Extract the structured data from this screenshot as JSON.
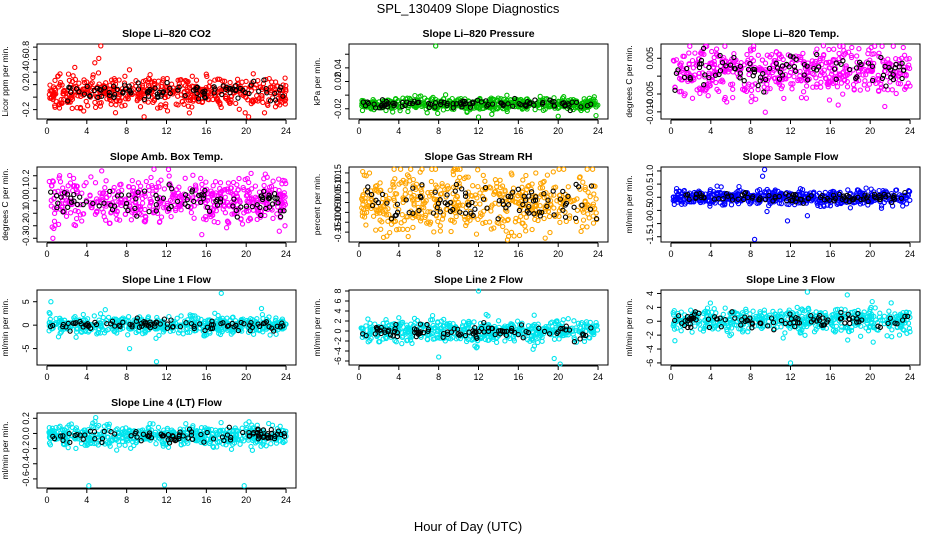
{
  "figure": {
    "title": "SPL_130409  Slope Diagnostics",
    "xlabel": "Hour of Day (UTC)"
  },
  "chart_data": [
    {
      "type": "scatter",
      "title": "Slope Li–820 CO2",
      "ylabel": "Licor ppm per min.",
      "color": "#ff0000",
      "xlim": [
        -1,
        25
      ],
      "ylim": [
        -0.35,
        0.85
      ],
      "xticks": [
        0,
        4,
        8,
        12,
        16,
        20,
        24
      ],
      "yticks": [
        -0.2,
        0.0,
        0.2,
        0.4,
        0.6,
        0.8
      ],
      "ytick_labels": [
        "-0.2",
        "",
        "0.2",
        "0.4",
        "0.6",
        "0.8"
      ],
      "spread": 0.12,
      "center": 0.08,
      "outliers": [
        [
          5.4,
          0.82
        ],
        [
          5.2,
          0.62
        ],
        [
          4.8,
          0.55
        ],
        [
          19.9,
          -0.25
        ],
        [
          12.1,
          -0.22
        ]
      ]
    },
    {
      "type": "scatter",
      "title": "Slope Li–820 Pressure",
      "ylabel": "kPa per min.",
      "color": "#00c000",
      "xlim": [
        -1,
        25
      ],
      "ylim": [
        -0.035,
        0.075
      ],
      "xticks": [
        0,
        4,
        8,
        12,
        16,
        20,
        24
      ],
      "yticks": [
        -0.02,
        0.0,
        0.02,
        0.04,
        0.06
      ],
      "ytick_labels": [
        "-0.02",
        "",
        "0.02",
        "0.04",
        ""
      ],
      "spread": 0.005,
      "center": -0.013,
      "outliers": [
        [
          7.7,
          0.072
        ],
        [
          12.0,
          -0.032
        ],
        [
          20.0,
          -0.031
        ],
        [
          23.8,
          -0.03
        ]
      ]
    },
    {
      "type": "scatter",
      "title": "Slope Li–820 Temp.",
      "ylabel": "degrees C per min.",
      "color": "#ff00ff",
      "xlim": [
        -1,
        25
      ],
      "ylim": [
        -0.012,
        0.009
      ],
      "xticks": [
        0,
        4,
        8,
        12,
        16,
        20,
        24
      ],
      "yticks": [
        -0.01,
        -0.005,
        0.0,
        0.005
      ],
      "ytick_labels": [
        "-0.010",
        "-0.005",
        "",
        "0.005"
      ],
      "spread": 0.0035,
      "center": 0.0015,
      "outliers": [
        [
          15.3,
          0.0085
        ],
        [
          20.1,
          0.008
        ],
        [
          6.2,
          -0.006
        ],
        [
          13.1,
          -0.006
        ]
      ]
    },
    {
      "type": "scatter",
      "title": "Slope Amb. Box Temp.",
      "ylabel": "degrees C per min.",
      "color": "#ff00ff",
      "xlim": [
        -1,
        25
      ],
      "ylim": [
        -0.33,
        0.27
      ],
      "xticks": [
        0,
        4,
        8,
        12,
        16,
        20,
        24
      ],
      "yticks": [
        -0.3,
        -0.2,
        -0.1,
        0.0,
        0.1,
        0.2
      ],
      "ytick_labels": [
        "-0.3",
        "-0.2",
        "-0.1",
        "0.0",
        "0.1",
        "0.2"
      ],
      "spread": 0.09,
      "center": 0.0,
      "outliers": [
        [
          0.6,
          -0.3
        ],
        [
          12.2,
          0.25
        ],
        [
          23.9,
          -0.2
        ]
      ]
    },
    {
      "type": "scatter",
      "title": "Slope Gas Stream RH",
      "ylabel": "percent per min.",
      "color": "#ffa500",
      "xlim": [
        -1,
        25
      ],
      "ylim": [
        -0.2,
        0.18
      ],
      "xticks": [
        0,
        4,
        8,
        12,
        16,
        20,
        24
      ],
      "yticks": [
        -0.15,
        -0.1,
        -0.05,
        0.0,
        0.05,
        0.1,
        0.15
      ],
      "ytick_labels": [
        "-0.15",
        "-0.10",
        "-0.05",
        "0.00",
        "0.05",
        "0.10",
        "0.15"
      ],
      "spread": 0.08,
      "center": 0.0,
      "outliers": [
        [
          2.8,
          -0.17
        ],
        [
          11.8,
          -0.16
        ],
        [
          18.7,
          -0.18
        ]
      ]
    },
    {
      "type": "scatter",
      "title": "Slope Sample Flow",
      "ylabel": "ml/min per min.",
      "color": "#0000ff",
      "xlim": [
        -1,
        25
      ],
      "ylim": [
        -1.7,
        1.15
      ],
      "xticks": [
        0,
        4,
        8,
        12,
        16,
        20,
        24
      ],
      "yticks": [
        -1.5,
        -1.0,
        -0.5,
        0.0,
        0.5,
        1.0
      ],
      "ytick_labels": [
        "-1.5",
        "-1.0",
        "-0.5",
        "0.0",
        "0.5",
        "1.0"
      ],
      "spread": 0.15,
      "center": 0.0,
      "outliers": [
        [
          8.4,
          -1.6
        ],
        [
          9.4,
          1.05
        ],
        [
          9.2,
          0.8
        ],
        [
          13.7,
          -0.7
        ],
        [
          11.7,
          -0.9
        ]
      ]
    },
    {
      "type": "scatter",
      "title": "Slope Line 1 Flow",
      "ylabel": "ml/min per min.",
      "color": "#00e5ee",
      "xlim": [
        -1,
        25
      ],
      "ylim": [
        -8.5,
        7.5
      ],
      "xticks": [
        0,
        4,
        8,
        12,
        16,
        20,
        24
      ],
      "yticks": [
        -5,
        0,
        5
      ],
      "ytick_labels": [
        "-5",
        "0",
        "5"
      ],
      "spread": 0.9,
      "center": 0.0,
      "outliers": [
        [
          11.0,
          -7.8
        ],
        [
          17.5,
          6.8
        ],
        [
          0.4,
          5.0
        ],
        [
          8.3,
          -5.0
        ]
      ]
    },
    {
      "type": "scatter",
      "title": "Slope Line 2 Flow",
      "ylabel": "ml/min per min.",
      "color": "#00e5ee",
      "xlim": [
        -1,
        25
      ],
      "ylim": [
        -6.8,
        8.2
      ],
      "xticks": [
        0,
        4,
        8,
        12,
        16,
        20,
        24
      ],
      "yticks": [
        -6,
        -4,
        -2,
        0,
        2,
        4,
        6,
        8
      ],
      "ytick_labels": [
        "-6",
        "-4",
        "-2",
        "0",
        "2",
        "4",
        "6",
        "8"
      ],
      "spread": 1.1,
      "center": 0.0,
      "outliers": [
        [
          12.0,
          8.0
        ],
        [
          20.2,
          -6.6
        ],
        [
          19.6,
          -5.5
        ],
        [
          8.0,
          -5.2
        ]
      ]
    },
    {
      "type": "scatter",
      "title": "Slope Line 3 Flow",
      "ylabel": "ml/min per min.",
      "color": "#00e5ee",
      "xlim": [
        -1,
        25
      ],
      "ylim": [
        -6.3,
        4.5
      ],
      "xticks": [
        0,
        4,
        8,
        12,
        16,
        20,
        24
      ],
      "yticks": [
        -6,
        -4,
        -2,
        0,
        2,
        4
      ],
      "ytick_labels": [
        "-6",
        "-4",
        "-2",
        "0",
        "2",
        "4"
      ],
      "spread": 0.9,
      "center": 0.1,
      "outliers": [
        [
          12.0,
          -6.0
        ],
        [
          13.7,
          4.2
        ],
        [
          17.7,
          3.8
        ],
        [
          20.3,
          -3.0
        ],
        [
          0.4,
          -2.8
        ]
      ]
    },
    {
      "type": "scatter",
      "title": "Slope Line 4 (LT) Flow",
      "ylabel": "ml/min per min.",
      "color": "#00e5ee",
      "xlim": [
        -1,
        25
      ],
      "ylim": [
        -0.72,
        0.27
      ],
      "xticks": [
        0,
        4,
        8,
        12,
        16,
        20,
        24
      ],
      "yticks": [
        -0.6,
        -0.4,
        -0.2,
        0.0,
        0.2
      ],
      "ytick_labels": [
        "-0.6",
        "-0.4",
        "-0.2",
        "0.0",
        "0.2"
      ],
      "spread": 0.07,
      "center": -0.03,
      "outliers": [
        [
          4.2,
          -0.69
        ],
        [
          11.8,
          -0.68
        ],
        [
          19.8,
          -0.69
        ],
        [
          7.0,
          -0.22
        ]
      ]
    }
  ]
}
